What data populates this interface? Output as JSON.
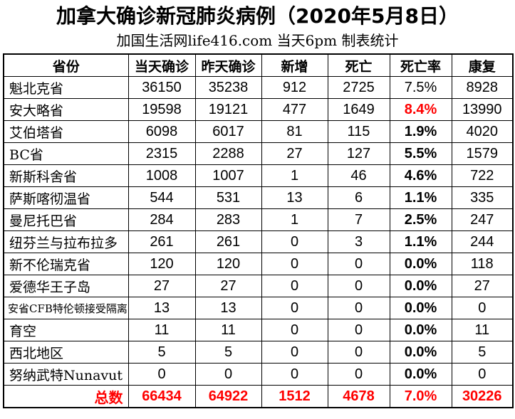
{
  "title": "加拿大确诊新冠肺炎病例（2020年5月8日）",
  "subtitle": "加国生活网life416.com 当天6pm 制表统计",
  "colors": {
    "accent_red": "#FF0000",
    "text_black": "#000000",
    "border": "#000000",
    "background": "#FFFFFF"
  },
  "table": {
    "headers": [
      "省份",
      "当天确诊",
      "昨天确诊",
      "新增",
      "死亡",
      "死亡率",
      "康复"
    ],
    "rows": [
      {
        "province": "魁北克省",
        "today": "36150",
        "yesterday": "35238",
        "added": "912",
        "deaths": "2725",
        "rate": "7.5%",
        "recovered": "8928",
        "rate_style": "normal",
        "small": false
      },
      {
        "province": "安大略省",
        "today": "19598",
        "yesterday": "19121",
        "added": "477",
        "deaths": "1649",
        "rate": "8.4%",
        "recovered": "13990",
        "rate_style": "red",
        "small": false
      },
      {
        "province": "艾伯塔省",
        "today": "6098",
        "yesterday": "6017",
        "added": "81",
        "deaths": "115",
        "rate": "1.9%",
        "recovered": "4020",
        "rate_style": "bold",
        "small": false
      },
      {
        "province": "BC省",
        "today": "2315",
        "yesterday": "2288",
        "added": "27",
        "deaths": "127",
        "rate": "5.5%",
        "recovered": "1579",
        "rate_style": "bold",
        "small": false
      },
      {
        "province": "新斯科舍省",
        "today": "1008",
        "yesterday": "1007",
        "added": "1",
        "deaths": "46",
        "rate": "4.6%",
        "recovered": "722",
        "rate_style": "bold",
        "small": false
      },
      {
        "province": "萨斯喀彻温省",
        "today": "544",
        "yesterday": "531",
        "added": "13",
        "deaths": "6",
        "rate": "1.1%",
        "recovered": "335",
        "rate_style": "bold",
        "small": false
      },
      {
        "province": "曼尼托巴省",
        "today": "284",
        "yesterday": "283",
        "added": "1",
        "deaths": "7",
        "rate": "2.5%",
        "recovered": "247",
        "rate_style": "bold",
        "small": false
      },
      {
        "province": "纽芬兰与拉布拉多",
        "today": "261",
        "yesterday": "261",
        "added": "0",
        "deaths": "3",
        "rate": "1.1%",
        "recovered": "244",
        "rate_style": "bold",
        "small": false
      },
      {
        "province": "新不伦瑞克省",
        "today": "120",
        "yesterday": "120",
        "added": "0",
        "deaths": "0",
        "rate": "0.0%",
        "recovered": "118",
        "rate_style": "bold",
        "small": false
      },
      {
        "province": "爱德华王子岛",
        "today": "27",
        "yesterday": "27",
        "added": "0",
        "deaths": "0",
        "rate": "0.0%",
        "recovered": "27",
        "rate_style": "bold",
        "small": false
      },
      {
        "province": "安省CFB特伦顿接受隔离",
        "today": "13",
        "yesterday": "13",
        "added": "0",
        "deaths": "0",
        "rate": "0.0%",
        "recovered": "0",
        "rate_style": "bold",
        "small": true
      },
      {
        "province": "育空",
        "today": "11",
        "yesterday": "11",
        "added": "0",
        "deaths": "0",
        "rate": "0.0%",
        "recovered": "11",
        "rate_style": "bold",
        "small": false
      },
      {
        "province": "西北地区",
        "today": "5",
        "yesterday": "5",
        "added": "0",
        "deaths": "0",
        "rate": "0.0%",
        "recovered": "5",
        "rate_style": "bold",
        "small": false
      },
      {
        "province": "努纳武特Nunavut",
        "today": "0",
        "yesterday": "0",
        "added": "0",
        "deaths": "0",
        "rate": "0.0%",
        "recovered": "0",
        "rate_style": "bold",
        "small": false
      }
    ],
    "total": {
      "label": "总数",
      "today": "66434",
      "yesterday": "64922",
      "added": "1512",
      "deaths": "4678",
      "rate": "7.0%",
      "recovered": "30226"
    }
  },
  "chart_data": {
    "type": "table",
    "title": "加拿大确诊新冠肺炎病例（2020年5月8日）",
    "subtitle": "加国生活网life416.com 当天6pm 制表统计",
    "columns": [
      "省份",
      "当天确诊",
      "昨天确诊",
      "新增",
      "死亡",
      "死亡率",
      "康复"
    ],
    "rows": [
      [
        "魁北克省",
        36150,
        35238,
        912,
        2725,
        "7.5%",
        8928
      ],
      [
        "安大略省",
        19598,
        19121,
        477,
        1649,
        "8.4%",
        13990
      ],
      [
        "艾伯塔省",
        6098,
        6017,
        81,
        115,
        "1.9%",
        4020
      ],
      [
        "BC省",
        2315,
        2288,
        27,
        127,
        "5.5%",
        1579
      ],
      [
        "新斯科舍省",
        1008,
        1007,
        1,
        46,
        "4.6%",
        722
      ],
      [
        "萨斯喀彻温省",
        544,
        531,
        13,
        6,
        "1.1%",
        335
      ],
      [
        "曼尼托巴省",
        284,
        283,
        1,
        7,
        "2.5%",
        247
      ],
      [
        "纽芬兰与拉布拉多",
        261,
        261,
        0,
        3,
        "1.1%",
        244
      ],
      [
        "新不伦瑞克省",
        120,
        120,
        0,
        0,
        "0.0%",
        118
      ],
      [
        "爱德华王子岛",
        27,
        27,
        0,
        0,
        "0.0%",
        27
      ],
      [
        "安省CFB特伦顿接受隔离",
        13,
        13,
        0,
        0,
        "0.0%",
        0
      ],
      [
        "育空",
        11,
        11,
        0,
        0,
        "0.0%",
        11
      ],
      [
        "西北地区",
        5,
        5,
        0,
        0,
        "0.0%",
        5
      ],
      [
        "努纳武特Nunavut",
        0,
        0,
        0,
        0,
        "0.0%",
        0
      ],
      [
        "总数",
        66434,
        64922,
        1512,
        4678,
        "7.0%",
        30226
      ]
    ]
  }
}
